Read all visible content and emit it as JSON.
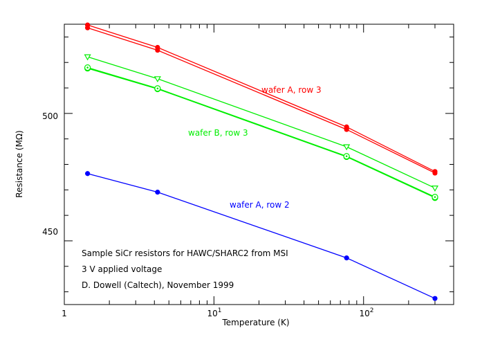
{
  "chart_data": {
    "type": "line",
    "xlabel": "Temperature (K)",
    "ylabel": "Resistance (MΩ)",
    "x_scale": "log",
    "xlim": [
      1,
      400
    ],
    "ylim": [
      425,
      535
    ],
    "x_ticks_major": [
      1,
      10,
      100
    ],
    "x_tick_labels": {
      "1": "1",
      "10": "10",
      "100": "10",
      "exp_10": "1",
      "exp_100": "2"
    },
    "y_ticks_major": [
      450,
      500
    ],
    "y_tick_labels": [
      "450",
      "500"
    ],
    "x": [
      1.43,
      4.2,
      77,
      300
    ],
    "series": [
      {
        "group": "wafer A, row 3",
        "color": "#ff0000",
        "marker": "filled-circle",
        "values": [
          534.7,
          525.9,
          494.7,
          477.2
        ]
      },
      {
        "group": "wafer A, row 3",
        "color": "#ff0000",
        "marker": "filled-circle",
        "values": [
          533.6,
          524.8,
          493.7,
          476.6
        ]
      },
      {
        "group": "wafer B, row 3",
        "color": "#00ee00",
        "marker": "triangle-down",
        "values": [
          522.2,
          513.6,
          486.9,
          470.7
        ]
      },
      {
        "group": "wafer B, row 3",
        "color": "#00ee00",
        "marker": "circle-dot",
        "values": [
          517.7,
          509.6,
          483.0,
          466.9
        ]
      },
      {
        "group": "wafer B, row 3",
        "color": "#00ee00",
        "marker": "circle-dot",
        "values": [
          518.0,
          509.8,
          483.2,
          467.2
        ]
      },
      {
        "group": "wafer A, row 2",
        "color": "#0000ff",
        "marker": "filled-circle",
        "values": [
          476.4,
          469.1,
          443.3,
          427.4
        ]
      }
    ],
    "series_labels": [
      {
        "text": "wafer A, row 3",
        "color": "#ff0000"
      },
      {
        "text": "wafer B, row 3",
        "color": "#00ee00"
      },
      {
        "text": "wafer A, row 2",
        "color": "#0000ff"
      }
    ],
    "notes": [
      "Sample SiCr resistors for HAWC/SHARC2 from MSI",
      "3 V applied voltage",
      "D. Dowell (Caltech), November 1999"
    ]
  }
}
